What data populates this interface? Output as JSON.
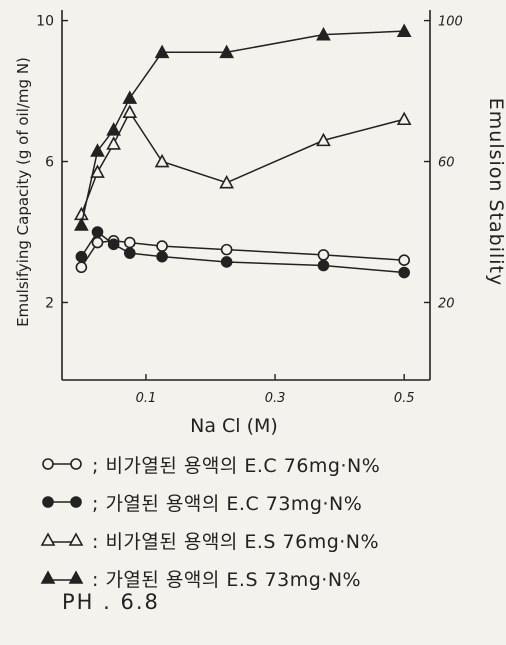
{
  "chart_data": {
    "type": "line",
    "xlabel": "Na Cl (M)",
    "ylabel_left": "Emulsifying Capacity (g of oil/mg N)",
    "ylabel_right": "Emulsion Stability",
    "x_ticks": [
      "0.1",
      "0.3",
      "0.5"
    ],
    "y_left_ticks": [
      "2",
      "6",
      "10"
    ],
    "y_right_ticks": [
      "20",
      "60",
      "100"
    ],
    "xlim": [
      -0.03,
      0.54
    ],
    "ylim_left": [
      -0.2,
      10.3
    ],
    "ylim_right": [
      -2,
      103
    ],
    "grid": false,
    "legend_position": "below",
    "series": [
      {
        "name": "비가열된 용액의 E.C 76mg N%",
        "axis": "left",
        "marker": "circle-open",
        "symbol": "○─○",
        "x": [
          0.0,
          0.025,
          0.05,
          0.075,
          0.125,
          0.225,
          0.375,
          0.5
        ],
        "y": [
          3.0,
          3.7,
          3.75,
          3.7,
          3.6,
          3.5,
          3.35,
          3.2
        ]
      },
      {
        "name": "가열된 용액의 E.C 73mg N%",
        "axis": "left",
        "marker": "circle-filled",
        "symbol": "●─●",
        "x": [
          0.0,
          0.025,
          0.05,
          0.075,
          0.125,
          0.225,
          0.375,
          0.5
        ],
        "y": [
          3.3,
          4.0,
          3.65,
          3.4,
          3.3,
          3.15,
          3.05,
          2.85
        ]
      },
      {
        "name": "비가열된 용액의 E.S 76mg N%",
        "axis": "right",
        "marker": "triangle-open",
        "symbol": "△─△",
        "x": [
          0.0,
          0.025,
          0.05,
          0.075,
          0.125,
          0.225,
          0.375,
          0.5
        ],
        "y": [
          45,
          57,
          65,
          74,
          60,
          54,
          66,
          72
        ]
      },
      {
        "name": "가열된 용액의 E.S 73mg N%",
        "axis": "right",
        "marker": "triangle-filled",
        "symbol": "▲─▲",
        "x": [
          0.0,
          0.025,
          0.05,
          0.075,
          0.125,
          0.225,
          0.375,
          0.5
        ],
        "y": [
          42,
          63,
          69,
          78,
          91,
          91,
          96,
          97
        ]
      }
    ]
  },
  "legend": {
    "rows": [
      {
        "symbol": "○─○",
        "text": "; 비가열된 용액의 E.C 76mg·N%"
      },
      {
        "symbol": "●─●",
        "text": "; 가열된 용액의 E.C 73mg·N%"
      },
      {
        "symbol": "△─△",
        "text": ": 비가열된 용액의 E.S 76mg·N%"
      },
      {
        "symbol": "▲─▲",
        "text": ": 가열된 용액의 E.S 73mg·N%"
      }
    ]
  },
  "footer": {
    "ph": "PH . 6.8"
  }
}
